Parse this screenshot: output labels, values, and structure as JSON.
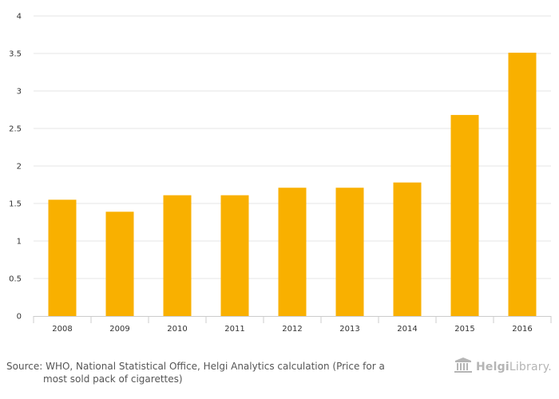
{
  "chart_data": {
    "type": "bar",
    "categories": [
      "2008",
      "2009",
      "2010",
      "2011",
      "2012",
      "2013",
      "2014",
      "2015",
      "2016"
    ],
    "values": [
      1.55,
      1.39,
      1.61,
      1.61,
      1.71,
      1.71,
      1.78,
      2.68,
      3.51
    ],
    "ylim": [
      0,
      4
    ],
    "yticks": [
      "0",
      "0.5",
      "1",
      "1.5",
      "2",
      "2.5",
      "3",
      "3.5",
      "4"
    ],
    "grid": true,
    "bar_color": "#f9b000",
    "grid_color": "#e6e6e6",
    "axis_color": "#cccccc"
  },
  "source": {
    "line1": "Source: WHO, National Statistical Office, Helgi Analytics calculation (Price for a",
    "line2": "most sold pack of cigarettes)"
  },
  "logo": {
    "icon": "building-icon",
    "brand_bold": "Helgi",
    "brand_rest": "Library."
  }
}
